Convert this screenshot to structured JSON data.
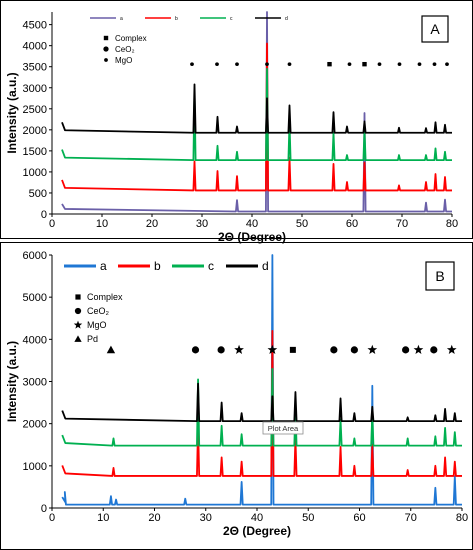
{
  "chart_data": [
    {
      "type": "line",
      "panel_label": "A",
      "xlabel": "2Θ (Degree)",
      "ylabel": "Intensity (a.u.)",
      "xlim": [
        0,
        80
      ],
      "ylim": [
        0,
        4800
      ],
      "x_ticks": [
        0,
        10,
        20,
        30,
        40,
        50,
        60,
        70,
        80
      ],
      "y_ticks": [
        0,
        500,
        1000,
        1500,
        2000,
        2500,
        3000,
        3500,
        4000,
        4500
      ],
      "grid": false,
      "legend_placement": "top-left",
      "series": [
        {
          "name": "a",
          "color": "#6a5fa8",
          "baseline": 60,
          "peaks": [
            {
              "x": 37,
              "y": 330
            },
            {
              "x": 43,
              "y": 4800
            },
            {
              "x": 62.5,
              "y": 2400
            },
            {
              "x": 74.8,
              "y": 270
            },
            {
              "x": 78.6,
              "y": 340
            }
          ]
        },
        {
          "name": "b",
          "color": "#ff0000",
          "baseline": 560,
          "peaks": [
            {
              "x": 28.5,
              "y": 1250
            },
            {
              "x": 33.1,
              "y": 1020
            },
            {
              "x": 37,
              "y": 900
            },
            {
              "x": 43,
              "y": 4050
            },
            {
              "x": 47.5,
              "y": 1340
            },
            {
              "x": 56.3,
              "y": 1190
            },
            {
              "x": 59,
              "y": 760
            },
            {
              "x": 62.5,
              "y": 1220
            },
            {
              "x": 69.4,
              "y": 680
            },
            {
              "x": 74.8,
              "y": 760
            },
            {
              "x": 76.7,
              "y": 950
            },
            {
              "x": 78.6,
              "y": 880
            }
          ]
        },
        {
          "name": "c",
          "color": "#00b050",
          "baseline": 1280,
          "peaks": [
            {
              "x": 28.5,
              "y": 2900
            },
            {
              "x": 33.1,
              "y": 1620
            },
            {
              "x": 37,
              "y": 1480
            },
            {
              "x": 43,
              "y": 3450
            },
            {
              "x": 47.5,
              "y": 2170
            },
            {
              "x": 56.3,
              "y": 1940
            },
            {
              "x": 59,
              "y": 1400
            },
            {
              "x": 62.5,
              "y": 2010
            },
            {
              "x": 69.4,
              "y": 1400
            },
            {
              "x": 74.8,
              "y": 1400
            },
            {
              "x": 76.7,
              "y": 1560
            },
            {
              "x": 78.6,
              "y": 1480
            }
          ]
        },
        {
          "name": "d",
          "color": "#000000",
          "baseline": 1930,
          "peaks": [
            {
              "x": 28.5,
              "y": 3080
            },
            {
              "x": 33.1,
              "y": 2310
            },
            {
              "x": 37,
              "y": 2080
            },
            {
              "x": 43,
              "y": 2750
            },
            {
              "x": 47.5,
              "y": 2580
            },
            {
              "x": 56.3,
              "y": 2420
            },
            {
              "x": 59,
              "y": 2080
            },
            {
              "x": 62.5,
              "y": 2200
            },
            {
              "x": 69.4,
              "y": 2050
            },
            {
              "x": 74.8,
              "y": 2040
            },
            {
              "x": 76.7,
              "y": 2180
            },
            {
              "x": 78.6,
              "y": 2120
            }
          ]
        }
      ],
      "phase_legend": [
        {
          "symbol": "square",
          "label": "Complex"
        },
        {
          "symbol": "circle",
          "label": "CeO₂"
        },
        {
          "symbol": "dot",
          "label": "MgO"
        }
      ],
      "phase_markers": {
        "y": 3560,
        "items": [
          {
            "x": 28,
            "symbol": "dot"
          },
          {
            "x": 33,
            "symbol": "dot"
          },
          {
            "x": 37,
            "symbol": "dot"
          },
          {
            "x": 43,
            "symbol": "dot"
          },
          {
            "x": 47.5,
            "symbol": "dot"
          },
          {
            "x": 55.5,
            "symbol": "square"
          },
          {
            "x": 59.5,
            "symbol": "dot"
          },
          {
            "x": 62.5,
            "symbol": "square"
          },
          {
            "x": 65.5,
            "symbol": "dot"
          },
          {
            "x": 69.5,
            "symbol": "dot"
          },
          {
            "x": 73.5,
            "symbol": "dot"
          },
          {
            "x": 76.5,
            "symbol": "dot"
          },
          {
            "x": 79,
            "symbol": "dot"
          }
        ]
      }
    },
    {
      "type": "line",
      "panel_label": "B",
      "xlabel": "2Θ (Degree)",
      "ylabel": "Intensity (a.u.)",
      "xlim": [
        0,
        80
      ],
      "ylim": [
        0,
        6000
      ],
      "x_ticks": [
        0,
        10,
        20,
        30,
        40,
        50,
        60,
        70,
        80
      ],
      "y_ticks": [
        0,
        1000,
        2000,
        3000,
        4000,
        5000,
        6000
      ],
      "grid": false,
      "legend_placement": "top-left",
      "tooltip": "Plot Area",
      "series": [
        {
          "name": "a",
          "color": "#1f77d4",
          "baseline": 80,
          "peaks": [
            {
              "x": 2.5,
              "y": 380
            },
            {
              "x": 11.5,
              "y": 280
            },
            {
              "x": 12.5,
              "y": 200
            },
            {
              "x": 26,
              "y": 220
            },
            {
              "x": 37,
              "y": 620
            },
            {
              "x": 43,
              "y": 6000
            },
            {
              "x": 62.5,
              "y": 2900
            },
            {
              "x": 74.8,
              "y": 480
            },
            {
              "x": 78.6,
              "y": 750
            }
          ]
        },
        {
          "name": "b",
          "color": "#ff0000",
          "baseline": 760,
          "peaks": [
            {
              "x": 12,
              "y": 950
            },
            {
              "x": 28.5,
              "y": 1950
            },
            {
              "x": 33.1,
              "y": 1200
            },
            {
              "x": 37,
              "y": 1100
            },
            {
              "x": 43,
              "y": 4200
            },
            {
              "x": 47.5,
              "y": 1650
            },
            {
              "x": 56.3,
              "y": 1450
            },
            {
              "x": 59,
              "y": 1000
            },
            {
              "x": 62.5,
              "y": 1500
            },
            {
              "x": 69.4,
              "y": 900
            },
            {
              "x": 74.8,
              "y": 1000
            },
            {
              "x": 76.7,
              "y": 1200
            },
            {
              "x": 78.6,
              "y": 1100
            }
          ]
        },
        {
          "name": "c",
          "color": "#00b050",
          "baseline": 1480,
          "peaks": [
            {
              "x": 12,
              "y": 1650
            },
            {
              "x": 28.5,
              "y": 3050
            },
            {
              "x": 33.1,
              "y": 1950
            },
            {
              "x": 37,
              "y": 1750
            },
            {
              "x": 43,
              "y": 3300
            },
            {
              "x": 47.5,
              "y": 2400
            },
            {
              "x": 56.3,
              "y": 2100
            },
            {
              "x": 59,
              "y": 1650
            },
            {
              "x": 62.5,
              "y": 2250
            },
            {
              "x": 69.4,
              "y": 1650
            },
            {
              "x": 74.8,
              "y": 1700
            },
            {
              "x": 76.7,
              "y": 1900
            },
            {
              "x": 78.6,
              "y": 1800
            }
          ]
        },
        {
          "name": "d",
          "color": "#000000",
          "baseline": 2060,
          "peaks": [
            {
              "x": 28.5,
              "y": 2950
            },
            {
              "x": 33.1,
              "y": 2500
            },
            {
              "x": 37,
              "y": 2250
            },
            {
              "x": 43,
              "y": 2650
            },
            {
              "x": 47.5,
              "y": 2750
            },
            {
              "x": 56.3,
              "y": 2600
            },
            {
              "x": 59,
              "y": 2250
            },
            {
              "x": 62.5,
              "y": 2400
            },
            {
              "x": 69.4,
              "y": 2150
            },
            {
              "x": 74.8,
              "y": 2200
            },
            {
              "x": 76.7,
              "y": 2350
            },
            {
              "x": 78.6,
              "y": 2250
            }
          ]
        }
      ],
      "phase_legend": [
        {
          "symbol": "square",
          "label": "Complex"
        },
        {
          "symbol": "circle",
          "label": "CeO₂"
        },
        {
          "symbol": "star",
          "label": "MgO"
        },
        {
          "symbol": "triangle",
          "label": "Pd"
        }
      ],
      "phase_markers": {
        "y": 3750,
        "items": [
          {
            "x": 11.5,
            "symbol": "triangle"
          },
          {
            "x": 28,
            "symbol": "circle"
          },
          {
            "x": 33,
            "symbol": "circle"
          },
          {
            "x": 36.5,
            "symbol": "star"
          },
          {
            "x": 43,
            "symbol": "star"
          },
          {
            "x": 47,
            "symbol": "square"
          },
          {
            "x": 55,
            "symbol": "circle"
          },
          {
            "x": 59,
            "symbol": "circle"
          },
          {
            "x": 62.5,
            "symbol": "star"
          },
          {
            "x": 69,
            "symbol": "circle"
          },
          {
            "x": 71.5,
            "symbol": "star"
          },
          {
            "x": 74.5,
            "symbol": "circle"
          },
          {
            "x": 78,
            "symbol": "star"
          }
        ]
      }
    }
  ]
}
